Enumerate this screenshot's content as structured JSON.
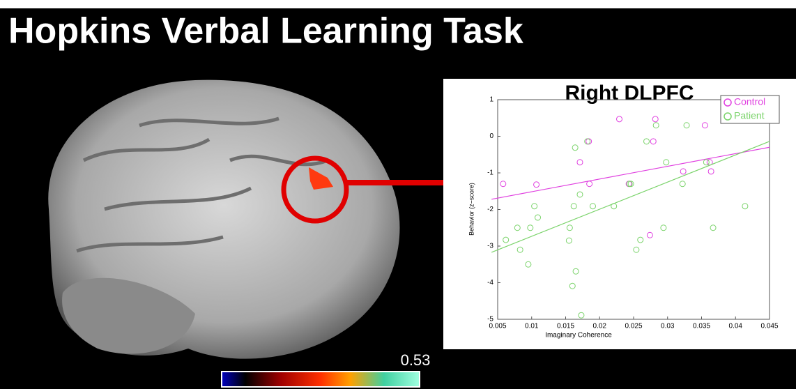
{
  "slide": {
    "title": "Hopkins Verbal Learning Task",
    "colorbar_max": 0.53
  },
  "chart_data": {
    "type": "scatter",
    "title": "Right DLPFC",
    "x_label": "Imaginary Coherence",
    "y_label": "Behavior (z−score)",
    "xlim": [
      0.005,
      0.045
    ],
    "xticks": [
      0.005,
      0.01,
      0.015,
      0.02,
      0.025,
      0.03,
      0.035,
      0.04,
      0.045
    ],
    "ylim": [
      -5,
      1
    ],
    "yticks": [
      -5,
      -4,
      -3,
      -2,
      -1,
      0,
      1
    ],
    "legend": "upper right",
    "series": [
      {
        "name": "Control",
        "color": "#e040e0",
        "x": [
          0.0058,
          0.0107,
          0.0171,
          0.0184,
          0.0185,
          0.0229,
          0.0243,
          0.0279,
          0.0282,
          0.0274,
          0.0323,
          0.0355,
          0.0364,
          0.0362
        ],
        "values": [
          -1.3,
          -1.32,
          -0.71,
          -0.14,
          -1.3,
          0.47,
          -1.3,
          -0.14,
          0.47,
          -2.7,
          -0.96,
          0.3,
          -0.96,
          -0.71
        ],
        "fit": {
          "x": [
            0.0041,
            0.045
          ],
          "values": [
            -1.72,
            -0.3
          ]
        }
      },
      {
        "name": "Patient",
        "color": "#7ad36a",
        "x": [
          0.0062,
          0.0079,
          0.0083,
          0.0095,
          0.0098,
          0.0104,
          0.0109,
          0.0156,
          0.0155,
          0.0162,
          0.0164,
          0.016,
          0.0165,
          0.0171,
          0.0173,
          0.0182,
          0.019,
          0.0221,
          0.0244,
          0.0246,
          0.0254,
          0.026,
          0.0269,
          0.0283,
          0.0294,
          0.0298,
          0.0322,
          0.0328,
          0.0357,
          0.0367,
          0.0414
        ],
        "values": [
          -2.83,
          -2.5,
          -3.1,
          -3.5,
          -2.5,
          -1.91,
          -2.22,
          -2.5,
          -2.85,
          -1.91,
          -0.31,
          -4.09,
          -3.69,
          -1.59,
          -4.89,
          -0.14,
          -1.91,
          -1.91,
          -1.3,
          -1.3,
          -3.1,
          -2.83,
          -0.14,
          0.3,
          -2.5,
          -0.71,
          -1.3,
          0.3,
          -0.71,
          -2.5,
          -1.91
        ],
        "fit": {
          "x": [
            0.0041,
            0.045
          ],
          "values": [
            -3.17,
            -0.14
          ]
        }
      }
    ]
  }
}
